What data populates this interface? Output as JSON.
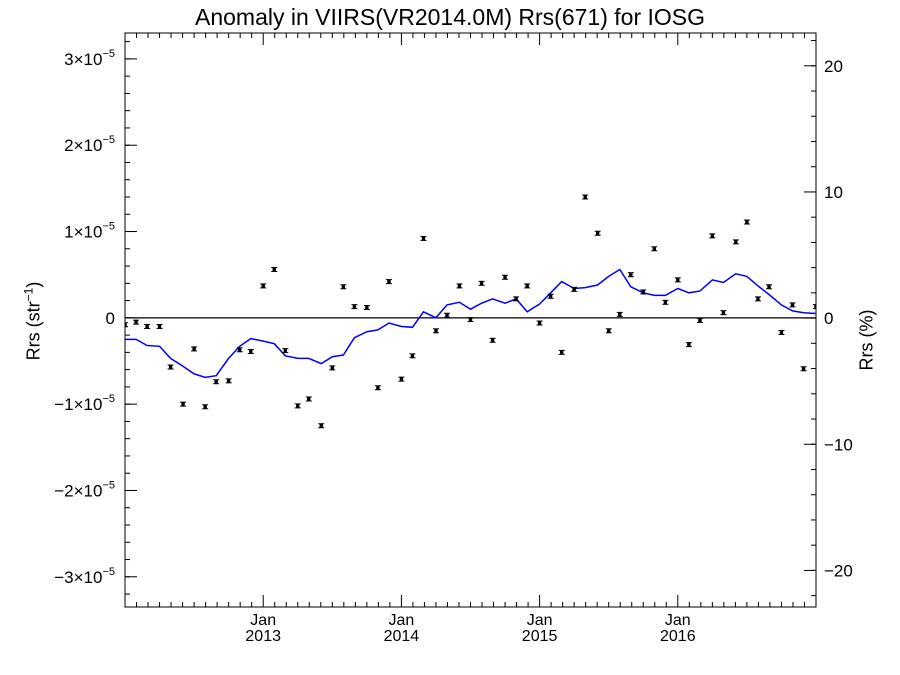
{
  "title": "Anomaly in VIIRS(VR2014.0M) Rrs(671) for IOSG",
  "ylabel_left": "Rrs (str",
  "ylabel_left_exp": "−1",
  "ylabel_left_close": ")",
  "ylabel_right": "Rrs (%)",
  "chart_data": {
    "type": "scatter",
    "title": "Anomaly in VIIRS(VR2014.0M) Rrs(671) for IOSG",
    "xlabel": "",
    "ylabel": "Rrs (str−1)",
    "y2label": "Rrs (%)",
    "xlim": [
      2012.0,
      2017.0
    ],
    "ylim": [
      -3.35e-05,
      3.3e-05
    ],
    "y2lim": [
      -22.9,
      22.6
    ],
    "grid": false,
    "zero_line": true,
    "x_ticks": [
      {
        "value": 2013.0,
        "month": "Jan",
        "year": "2013"
      },
      {
        "value": 2014.0,
        "month": "Jan",
        "year": "2014"
      },
      {
        "value": 2015.0,
        "month": "Jan",
        "year": "2015"
      },
      {
        "value": 2016.0,
        "month": "Jan",
        "year": "2016"
      }
    ],
    "y_ticks_left": [
      {
        "value": 3e-05,
        "mant": "3",
        "exp": "−5"
      },
      {
        "value": 2e-05,
        "mant": "2",
        "exp": "−5"
      },
      {
        "value": 1e-05,
        "mant": "1",
        "exp": "−5"
      },
      {
        "value": 0,
        "mant": "0",
        "exp": ""
      },
      {
        "value": -1e-05,
        "mant": "−1",
        "exp": "−5"
      },
      {
        "value": -2e-05,
        "mant": "−2",
        "exp": "−5"
      },
      {
        "value": -3e-05,
        "mant": "−3",
        "exp": "−5"
      }
    ],
    "y_ticks_right": [
      {
        "value": 20,
        "label": "20"
      },
      {
        "value": 10,
        "label": "10"
      },
      {
        "value": 0,
        "label": "0"
      },
      {
        "value": -10,
        "label": "−10"
      },
      {
        "value": -20,
        "label": "−20"
      }
    ],
    "series": [
      {
        "type": "scatter",
        "color": "#000000",
        "error_bars": true,
        "x": [
          2012.0,
          2012.08,
          2012.16,
          2012.25,
          2012.33,
          2012.42,
          2012.5,
          2012.58,
          2012.66,
          2012.75,
          2012.83,
          2012.91,
          2013.0,
          2013.08,
          2013.16,
          2013.25,
          2013.33,
          2013.42,
          2013.5,
          2013.58,
          2013.66,
          2013.75,
          2013.83,
          2013.91,
          2014.0,
          2014.08,
          2014.16,
          2014.25,
          2014.33,
          2014.42,
          2014.5,
          2014.58,
          2014.66,
          2014.75,
          2014.83,
          2014.91,
          2015.0,
          2015.08,
          2015.16,
          2015.25,
          2015.33,
          2015.42,
          2015.5,
          2015.58,
          2015.66,
          2015.75,
          2015.83,
          2015.91,
          2016.0,
          2016.08,
          2016.16,
          2016.25,
          2016.33,
          2016.42,
          2016.5,
          2016.58,
          2016.66,
          2016.75,
          2016.83,
          2016.91,
          2017.0
        ],
        "y": [
          -8e-07,
          -5e-07,
          -1e-06,
          -1e-06,
          -5.7e-06,
          -1e-05,
          -3.6e-06,
          -1.03e-05,
          -7.4e-06,
          -7.3e-06,
          -3.7e-06,
          -3.9e-06,
          3.7e-06,
          5.6e-06,
          -3.8e-06,
          -1.02e-05,
          -9.4e-06,
          -1.25e-05,
          -5.8e-06,
          3.6e-06,
          1.3e-06,
          1.2e-06,
          -8.1e-06,
          4.2e-06,
          -7.1e-06,
          -4.4e-06,
          9.2e-06,
          -1.5e-06,
          3e-07,
          3.7e-06,
          -2e-07,
          4e-06,
          -2.6e-06,
          4.7e-06,
          2.2e-06,
          3.7e-06,
          -6e-07,
          2.5e-06,
          -4e-06,
          3.3e-06,
          1.4e-05,
          9.8e-06,
          -1.5e-06,
          4e-07,
          5e-06,
          3e-06,
          8e-06,
          1.8e-06,
          4.4e-06,
          -3.1e-06,
          -3e-07,
          9.5e-06,
          6e-07,
          8.8e-06,
          1.11e-05,
          2.2e-06,
          3.6e-06,
          -1.7e-06,
          1.5e-06,
          -5.9e-06,
          1.3e-06
        ]
      },
      {
        "type": "line",
        "color": "#0000ff",
        "x": [
          2012.0,
          2012.08,
          2012.16,
          2012.25,
          2012.33,
          2012.42,
          2012.5,
          2012.58,
          2012.66,
          2012.75,
          2012.83,
          2012.91,
          2013.0,
          2013.08,
          2013.16,
          2013.25,
          2013.33,
          2013.42,
          2013.5,
          2013.58,
          2013.66,
          2013.75,
          2013.83,
          2013.91,
          2014.0,
          2014.08,
          2014.16,
          2014.25,
          2014.33,
          2014.42,
          2014.5,
          2014.58,
          2014.66,
          2014.75,
          2014.83,
          2014.91,
          2015.0,
          2015.08,
          2015.16,
          2015.25,
          2015.33,
          2015.42,
          2015.5,
          2015.58,
          2015.66,
          2015.75,
          2015.83,
          2015.91,
          2016.0,
          2016.08,
          2016.16,
          2016.25,
          2016.33,
          2016.42,
          2016.5,
          2016.58,
          2016.66,
          2016.75,
          2016.83,
          2016.91,
          2017.0
        ],
        "y": [
          -2.5e-06,
          -2.5e-06,
          -3.2e-06,
          -3.3e-06,
          -4.7e-06,
          -5.6e-06,
          -6.5e-06,
          -6.9e-06,
          -6.7e-06,
          -4.7e-06,
          -3.3e-06,
          -2.4e-06,
          -2.7e-06,
          -3e-06,
          -4.4e-06,
          -4.7e-06,
          -4.7e-06,
          -5.3e-06,
          -4.5e-06,
          -4.3e-06,
          -2.3e-06,
          -1.6e-06,
          -1.4e-06,
          -6e-07,
          -1e-06,
          -1.1e-06,
          7e-07,
          0.0,
          1.5e-06,
          1.8e-06,
          1e-06,
          1.7e-06,
          2.2e-06,
          1.7e-06,
          2.2e-06,
          7e-07,
          1.6e-06,
          2.9e-06,
          4.2e-06,
          3.4e-06,
          3.5e-06,
          3.8e-06,
          4.8e-06,
          5.6e-06,
          3.6e-06,
          2.9e-06,
          2.6e-06,
          2.6e-06,
          3.4e-06,
          2.9e-06,
          3.1e-06,
          4.4e-06,
          4.1e-06,
          5.1e-06,
          4.8e-06,
          3.7e-06,
          2.7e-06,
          1.5e-06,
          8e-07,
          6e-07,
          5e-07
        ]
      }
    ]
  }
}
